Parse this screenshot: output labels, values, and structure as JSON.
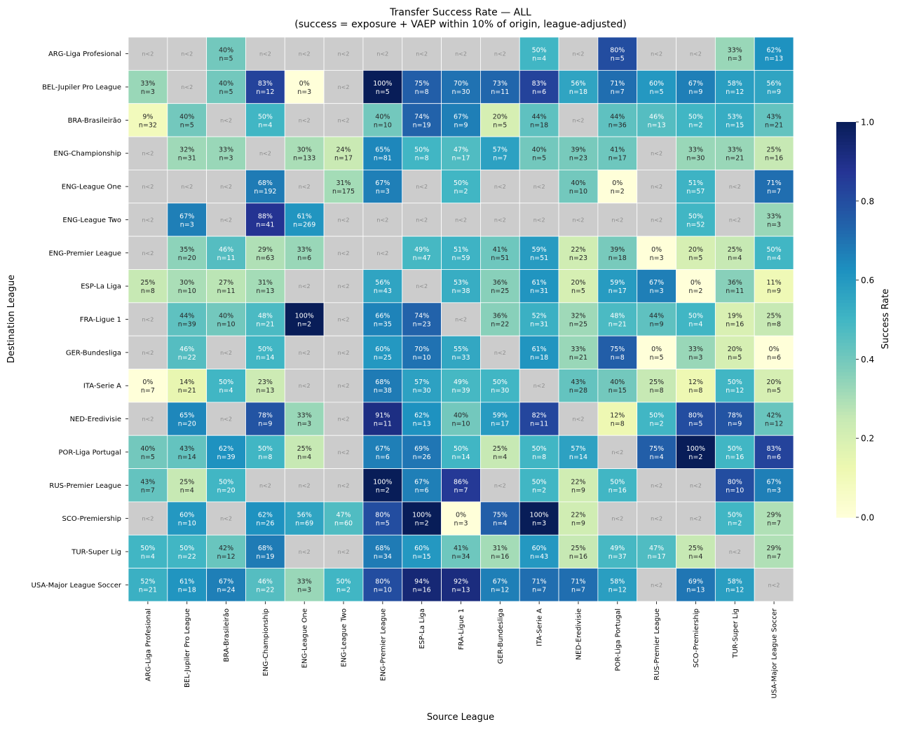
{
  "chart_data": {
    "type": "heatmap",
    "title": "Transfer Success Rate — ALL",
    "subtitle": "(success = exposure + VAEP within 10% of origin, league-adjusted)",
    "xlabel": "Source League",
    "ylabel": "Destination League",
    "colorbar_label": "Success Rate",
    "colorbar_ticks": [
      "0.0",
      "0.2",
      "0.4",
      "0.6",
      "0.8",
      "1.0"
    ],
    "colorscale": "YlGnBu",
    "value_range": [
      0,
      1
    ],
    "missing_label": "n<2",
    "missing_color": "#cccccc",
    "x_categories": [
      "ARG-Liga Profesional",
      "BEL-Jupiler Pro League",
      "BRA-Brasileirão",
      "ENG-Championship",
      "ENG-League One",
      "ENG-League Two",
      "ENG-Premier League",
      "ESP-La Liga",
      "FRA-Ligue 1",
      "GER-Bundesliga",
      "ITA-Serie A",
      "NED-Eredivisie",
      "POR-Liga Portugal",
      "RUS-Premier League",
      "SCO-Premiership",
      "TUR-Super Lig",
      "USA-Major League Soccer"
    ],
    "y_categories": [
      "ARG-Liga Profesional",
      "BEL-Jupiler Pro League",
      "BRA-Brasileirão",
      "ENG-Championship",
      "ENG-League One",
      "ENG-League Two",
      "ENG-Premier League",
      "ESP-La Liga",
      "FRA-Ligue 1",
      "GER-Bundesliga",
      "ITA-Serie A",
      "NED-Eredivisie",
      "POR-Liga Portugal",
      "RUS-Premier League",
      "SCO-Premiership",
      "TUR-Super Lig",
      "USA-Major League Soccer"
    ],
    "cells": [
      [
        null,
        null,
        "40|5",
        null,
        null,
        null,
        null,
        null,
        null,
        null,
        "50|4",
        null,
        "80|5",
        null,
        null,
        "33|3",
        "62|13"
      ],
      [
        "33|3",
        null,
        "40|5",
        "83|12",
        "0|3",
        null,
        "100|5",
        "75|8",
        "70|30",
        "73|11",
        "83|6",
        "56|18",
        "71|7",
        "60|5",
        "67|9",
        "58|12",
        "56|9"
      ],
      [
        "9|32",
        "40|5",
        null,
        "50|4",
        null,
        null,
        "40|10",
        "74|19",
        "67|9",
        "20|5",
        "44|18",
        null,
        "44|36",
        "46|13",
        "50|2",
        "53|15",
        "43|21"
      ],
      [
        null,
        "32|31",
        "33|3",
        null,
        "30|133",
        "24|17",
        "65|81",
        "50|8",
        "47|17",
        "57|7",
        "40|5",
        "39|23",
        "41|17",
        null,
        "33|30",
        "33|21",
        "25|16"
      ],
      [
        null,
        null,
        null,
        "68|192",
        null,
        "31|175",
        "67|3",
        null,
        "50|2",
        null,
        null,
        "40|10",
        "0|2",
        null,
        "51|57",
        null,
        "71|7"
      ],
      [
        null,
        "67|3",
        null,
        "88|41",
        "61|269",
        null,
        null,
        null,
        null,
        null,
        null,
        null,
        null,
        null,
        "50|52",
        null,
        "33|3"
      ],
      [
        null,
        "35|20",
        "46|11",
        "29|63",
        "33|6",
        null,
        null,
        "49|47",
        "51|59",
        "41|51",
        "59|51",
        "22|23",
        "39|18",
        "0|3",
        "20|5",
        "25|4",
        "50|4"
      ],
      [
        "25|8",
        "30|10",
        "27|11",
        "31|13",
        null,
        null,
        "56|43",
        null,
        "53|38",
        "36|25",
        "61|31",
        "20|5",
        "59|17",
        "67|3",
        "0|2",
        "36|11",
        "11|9"
      ],
      [
        null,
        "44|39",
        "40|10",
        "48|21",
        "100|2",
        null,
        "66|35",
        "74|23",
        null,
        "36|22",
        "52|31",
        "32|25",
        "48|21",
        "44|9",
        "50|4",
        "19|16",
        "25|8"
      ],
      [
        null,
        "46|22",
        null,
        "50|14",
        null,
        null,
        "60|25",
        "70|10",
        "55|33",
        null,
        "61|18",
        "33|21",
        "75|8",
        "0|5",
        "33|3",
        "20|5",
        "0|6"
      ],
      [
        "0|7",
        "14|21",
        "50|4",
        "23|13",
        null,
        null,
        "68|38",
        "57|30",
        "49|39",
        "50|30",
        null,
        "43|28",
        "40|15",
        "25|8",
        "12|8",
        "50|12",
        "20|5"
      ],
      [
        null,
        "65|20",
        null,
        "78|9",
        "33|3",
        null,
        "91|11",
        "62|13",
        "40|10",
        "59|17",
        "82|11",
        null,
        "12|8",
        "50|2",
        "80|5",
        "78|9",
        "42|12"
      ],
      [
        "40|5",
        "43|14",
        "62|39",
        "50|8",
        "25|4",
        null,
        "67|6",
        "69|26",
        "50|14",
        "25|4",
        "50|8",
        "57|14",
        null,
        "75|4",
        "100|2",
        "50|16",
        "83|6"
      ],
      [
        "43|7",
        "25|4",
        "50|20",
        null,
        null,
        null,
        "100|2",
        "67|6",
        "86|7",
        null,
        "50|2",
        "22|9",
        "50|16",
        null,
        null,
        "80|10",
        "67|3"
      ],
      [
        null,
        "60|10",
        null,
        "62|26",
        "56|69",
        "47|60",
        "80|5",
        "100|2",
        "0|3",
        "75|4",
        "100|3",
        "22|9",
        null,
        null,
        null,
        "50|2",
        "29|7"
      ],
      [
        "50|4",
        "50|22",
        "42|12",
        "68|19",
        null,
        null,
        "68|34",
        "60|15",
        "41|34",
        "31|16",
        "60|43",
        "25|16",
        "49|37",
        "47|17",
        "25|4",
        null,
        "29|7"
      ],
      [
        "52|21",
        "61|18",
        "67|24",
        "46|22",
        "33|3",
        "50|2",
        "80|10",
        "94|16",
        "92|13",
        "67|12",
        "71|7",
        "71|7",
        "58|12",
        null,
        "69|13",
        "58|12",
        null
      ]
    ]
  }
}
